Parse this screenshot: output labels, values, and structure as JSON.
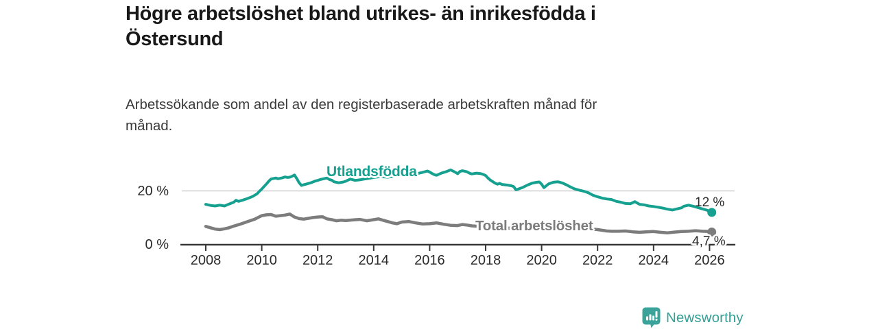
{
  "header": {
    "title_line1": "Högre arbetslöshet bland utrikes- än inrikesfödda i",
    "title_line2": "Östersund",
    "subtitle_line1": "Arbetssökande som andel av den registerbaserade arbetskraften månad för",
    "subtitle_line2": "månad."
  },
  "branding": {
    "logo_text": "Newsworthy"
  },
  "colors": {
    "teal": "#16a08f",
    "gray": "#7c7c7c",
    "axis": "#383838",
    "grid": "#cfcfcf",
    "title": "#181818",
    "logo": "#35a096"
  },
  "chart_data": {
    "type": "line",
    "x_ticks": [
      2008,
      2010,
      2012,
      2014,
      2016,
      2018,
      2020,
      2022,
      2024,
      2026
    ],
    "x_range": [
      2008,
      2026.2
    ],
    "ylim": [
      0,
      30
    ],
    "y_gridlines": [
      20
    ],
    "y_tick_labels": [
      "0 %",
      "20 %"
    ],
    "grid": "single horizontal gridline at 20%",
    "legend_position": "inline labels on lines",
    "series": [
      {
        "name": "Utlandsfödda",
        "color": "#16a08f",
        "end_label": "12 %",
        "end_value": 12.0,
        "points": [
          [
            2008.0,
            15.0
          ],
          [
            2008.17,
            14.6
          ],
          [
            2008.33,
            14.4
          ],
          [
            2008.5,
            14.7
          ],
          [
            2008.67,
            14.4
          ],
          [
            2008.83,
            15.1
          ],
          [
            2009.0,
            15.8
          ],
          [
            2009.08,
            16.5
          ],
          [
            2009.17,
            16.1
          ],
          [
            2009.33,
            16.6
          ],
          [
            2009.5,
            17.2
          ],
          [
            2009.67,
            17.9
          ],
          [
            2009.83,
            18.9
          ],
          [
            2009.92,
            19.9
          ],
          [
            2010.0,
            20.7
          ],
          [
            2010.08,
            21.6
          ],
          [
            2010.17,
            22.6
          ],
          [
            2010.25,
            23.6
          ],
          [
            2010.33,
            24.4
          ],
          [
            2010.5,
            24.8
          ],
          [
            2010.58,
            24.5
          ],
          [
            2010.75,
            24.9
          ],
          [
            2010.83,
            25.2
          ],
          [
            2010.92,
            25.0
          ],
          [
            2011.0,
            25.1
          ],
          [
            2011.08,
            25.4
          ],
          [
            2011.17,
            25.9
          ],
          [
            2011.25,
            24.6
          ],
          [
            2011.33,
            23.1
          ],
          [
            2011.42,
            22.0
          ],
          [
            2011.5,
            22.3
          ],
          [
            2011.58,
            22.5
          ],
          [
            2011.75,
            23.0
          ],
          [
            2011.92,
            23.7
          ],
          [
            2012.0,
            23.9
          ],
          [
            2012.08,
            24.2
          ],
          [
            2012.25,
            24.6
          ],
          [
            2012.33,
            24.8
          ],
          [
            2012.42,
            24.2
          ],
          [
            2012.5,
            24.0
          ],
          [
            2012.58,
            23.4
          ],
          [
            2012.75,
            23.0
          ],
          [
            2012.92,
            23.3
          ],
          [
            2013.0,
            23.6
          ],
          [
            2013.08,
            24.0
          ],
          [
            2013.17,
            24.4
          ],
          [
            2013.33,
            23.9
          ],
          [
            2013.5,
            24.1
          ],
          [
            2013.67,
            24.4
          ],
          [
            2013.83,
            24.7
          ],
          [
            2014.0,
            25.0
          ],
          [
            2014.25,
            25.3
          ],
          [
            2014.5,
            25.1
          ],
          [
            2014.75,
            25.5
          ],
          [
            2015.0,
            25.8
          ],
          [
            2015.25,
            26.0
          ],
          [
            2015.5,
            26.3
          ],
          [
            2015.75,
            26.9
          ],
          [
            2015.92,
            27.4
          ],
          [
            2016.0,
            27.0
          ],
          [
            2016.08,
            26.5
          ],
          [
            2016.17,
            26.0
          ],
          [
            2016.25,
            25.8
          ],
          [
            2016.42,
            26.6
          ],
          [
            2016.58,
            27.1
          ],
          [
            2016.75,
            27.8
          ],
          [
            2016.92,
            26.9
          ],
          [
            2017.0,
            26.4
          ],
          [
            2017.08,
            27.2
          ],
          [
            2017.17,
            27.5
          ],
          [
            2017.33,
            27.1
          ],
          [
            2017.42,
            26.6
          ],
          [
            2017.5,
            26.3
          ],
          [
            2017.67,
            26.6
          ],
          [
            2017.83,
            26.4
          ],
          [
            2017.92,
            26.1
          ],
          [
            2018.0,
            25.7
          ],
          [
            2018.08,
            24.8
          ],
          [
            2018.17,
            24.0
          ],
          [
            2018.33,
            22.9
          ],
          [
            2018.42,
            22.5
          ],
          [
            2018.5,
            22.8
          ],
          [
            2018.58,
            22.4
          ],
          [
            2018.75,
            22.2
          ],
          [
            2018.92,
            21.9
          ],
          [
            2019.0,
            21.6
          ],
          [
            2019.08,
            20.4
          ],
          [
            2019.17,
            20.7
          ],
          [
            2019.33,
            21.3
          ],
          [
            2019.5,
            22.2
          ],
          [
            2019.67,
            22.9
          ],
          [
            2019.83,
            23.2
          ],
          [
            2019.92,
            23.3
          ],
          [
            2020.0,
            22.5
          ],
          [
            2020.08,
            21.2
          ],
          [
            2020.25,
            22.6
          ],
          [
            2020.42,
            23.2
          ],
          [
            2020.58,
            23.4
          ],
          [
            2020.75,
            22.9
          ],
          [
            2020.92,
            22.1
          ],
          [
            2021.0,
            21.6
          ],
          [
            2021.17,
            20.8
          ],
          [
            2021.33,
            20.3
          ],
          [
            2021.5,
            19.9
          ],
          [
            2021.67,
            19.3
          ],
          [
            2021.83,
            18.4
          ],
          [
            2022.0,
            17.8
          ],
          [
            2022.17,
            17.3
          ],
          [
            2022.33,
            17.0
          ],
          [
            2022.5,
            16.8
          ],
          [
            2022.67,
            16.1
          ],
          [
            2022.83,
            15.8
          ],
          [
            2023.0,
            15.3
          ],
          [
            2023.17,
            15.2
          ],
          [
            2023.33,
            16.0
          ],
          [
            2023.5,
            15.0
          ],
          [
            2023.67,
            14.8
          ],
          [
            2023.83,
            14.4
          ],
          [
            2024.0,
            14.2
          ],
          [
            2024.17,
            13.9
          ],
          [
            2024.33,
            13.6
          ],
          [
            2024.5,
            13.2
          ],
          [
            2024.67,
            12.9
          ],
          [
            2024.83,
            13.3
          ],
          [
            2025.0,
            13.7
          ],
          [
            2025.08,
            14.3
          ],
          [
            2025.25,
            14.7
          ],
          [
            2025.42,
            14.3
          ],
          [
            2025.58,
            13.8
          ],
          [
            2025.75,
            13.3
          ],
          [
            2025.92,
            12.8
          ],
          [
            2026.08,
            12.0
          ]
        ]
      },
      {
        "name": "Total arbetslöshet",
        "color": "#7c7c7c",
        "end_label": "4,7 %",
        "end_value": 4.7,
        "points": [
          [
            2008.0,
            6.8
          ],
          [
            2008.17,
            6.3
          ],
          [
            2008.33,
            5.8
          ],
          [
            2008.5,
            5.6
          ],
          [
            2008.67,
            5.9
          ],
          [
            2008.83,
            6.3
          ],
          [
            2009.0,
            6.9
          ],
          [
            2009.25,
            7.7
          ],
          [
            2009.5,
            8.6
          ],
          [
            2009.75,
            9.5
          ],
          [
            2010.0,
            10.8
          ],
          [
            2010.17,
            11.1
          ],
          [
            2010.33,
            11.2
          ],
          [
            2010.5,
            10.6
          ],
          [
            2010.67,
            10.8
          ],
          [
            2010.83,
            11.0
          ],
          [
            2011.0,
            11.4
          ],
          [
            2011.17,
            10.3
          ],
          [
            2011.33,
            9.7
          ],
          [
            2011.5,
            9.5
          ],
          [
            2011.67,
            9.8
          ],
          [
            2011.83,
            10.1
          ],
          [
            2012.0,
            10.3
          ],
          [
            2012.17,
            10.4
          ],
          [
            2012.33,
            9.6
          ],
          [
            2012.5,
            9.3
          ],
          [
            2012.67,
            8.9
          ],
          [
            2012.83,
            9.1
          ],
          [
            2013.0,
            9.0
          ],
          [
            2013.25,
            9.2
          ],
          [
            2013.5,
            9.4
          ],
          [
            2013.75,
            8.9
          ],
          [
            2014.0,
            9.3
          ],
          [
            2014.17,
            9.6
          ],
          [
            2014.33,
            9.1
          ],
          [
            2014.5,
            8.6
          ],
          [
            2014.67,
            8.1
          ],
          [
            2014.83,
            7.8
          ],
          [
            2015.0,
            8.4
          ],
          [
            2015.25,
            8.6
          ],
          [
            2015.5,
            8.1
          ],
          [
            2015.75,
            7.7
          ],
          [
            2016.0,
            7.8
          ],
          [
            2016.25,
            8.1
          ],
          [
            2016.5,
            7.6
          ],
          [
            2016.75,
            7.2
          ],
          [
            2017.0,
            7.1
          ],
          [
            2017.17,
            7.5
          ],
          [
            2017.33,
            7.3
          ],
          [
            2017.5,
            7.0
          ],
          [
            2017.75,
            6.8
          ],
          [
            2018.0,
            6.6
          ],
          [
            2018.5,
            6.3
          ],
          [
            2019.0,
            6.1
          ],
          [
            2019.5,
            6.2
          ],
          [
            2020.0,
            6.5
          ],
          [
            2020.33,
            7.0
          ],
          [
            2020.67,
            6.9
          ],
          [
            2021.0,
            6.7
          ],
          [
            2021.5,
            6.2
          ],
          [
            2022.0,
            5.6
          ],
          [
            2022.33,
            5.1
          ],
          [
            2022.5,
            5.0
          ],
          [
            2022.75,
            5.0
          ],
          [
            2023.0,
            5.1
          ],
          [
            2023.25,
            4.8
          ],
          [
            2023.5,
            4.6
          ],
          [
            2023.75,
            4.8
          ],
          [
            2024.0,
            4.9
          ],
          [
            2024.25,
            4.6
          ],
          [
            2024.5,
            4.4
          ],
          [
            2024.75,
            4.7
          ],
          [
            2025.0,
            4.9
          ],
          [
            2025.25,
            5.0
          ],
          [
            2025.5,
            5.2
          ],
          [
            2025.75,
            5.0
          ],
          [
            2026.0,
            4.9
          ],
          [
            2026.08,
            4.7
          ]
        ]
      }
    ]
  }
}
